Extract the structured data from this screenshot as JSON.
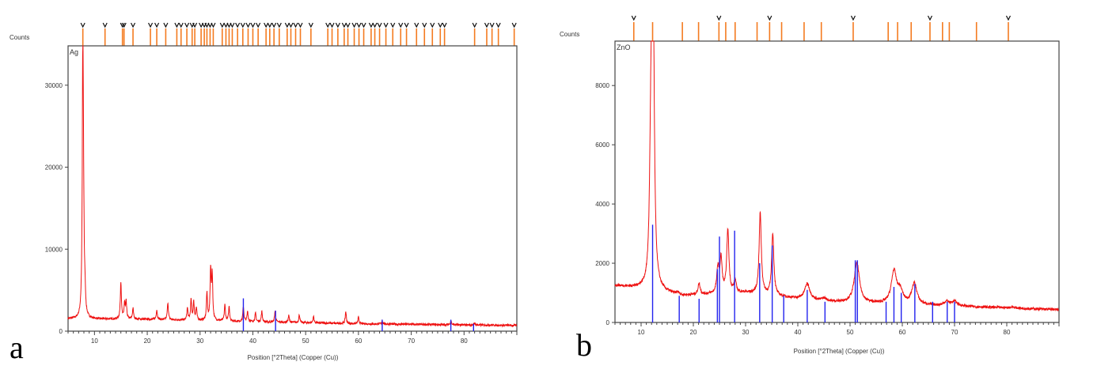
{
  "colors": {
    "pattern": "#ee1111",
    "reference_top": "#f47b20",
    "reference_phase": "#2222ee",
    "axis": "#444444"
  },
  "chart_data": [
    {
      "type": "line",
      "panel_letter": "a",
      "sample_label": "Ag",
      "ylabel": "Counts",
      "xlabel": "Position [°2Theta] (Copper (Cu))",
      "xlim": [
        5,
        90
      ],
      "ylim": [
        0,
        34800
      ],
      "xticks": [
        10,
        20,
        30,
        40,
        50,
        60,
        70,
        80
      ],
      "yticks": [
        0,
        10000,
        20000,
        30000
      ],
      "grid": false,
      "baseline": [
        [
          5,
          1500
        ],
        [
          20,
          1450
        ],
        [
          40,
          1150
        ],
        [
          60,
          900
        ],
        [
          90,
          700
        ]
      ],
      "peaks": [
        [
          7.8,
          34800
        ],
        [
          7.95,
          8500
        ],
        [
          8.2,
          3600
        ],
        [
          15.0,
          6000
        ],
        [
          15.7,
          3300
        ],
        [
          16.0,
          3500
        ],
        [
          17.3,
          2800
        ],
        [
          21.8,
          2600
        ],
        [
          23.9,
          3500
        ],
        [
          27.6,
          2800
        ],
        [
          28.3,
          3800
        ],
        [
          28.8,
          3500
        ],
        [
          29.3,
          2800
        ],
        [
          31.3,
          4600
        ],
        [
          32.0,
          7300
        ],
        [
          32.3,
          6800
        ],
        [
          34.7,
          3200
        ],
        [
          35.5,
          3000
        ],
        [
          38.2,
          3000
        ],
        [
          39.0,
          2400
        ],
        [
          40.5,
          2200
        ],
        [
          41.7,
          2400
        ],
        [
          44.2,
          2400
        ],
        [
          46.8,
          1900
        ],
        [
          48.8,
          2000
        ],
        [
          51.5,
          1800
        ],
        [
          57.6,
          2400
        ],
        [
          60.0,
          1700
        ],
        [
          64.5,
          1300
        ],
        [
          77.5,
          1300
        ],
        [
          82.0,
          1000
        ]
      ],
      "reference_phase_lines": [
        [
          38.2,
          4000
        ],
        [
          44.3,
          2500
        ],
        [
          64.5,
          1400
        ],
        [
          77.5,
          1400
        ],
        [
          81.8,
          900
        ]
      ],
      "reference_top_ticks": [
        7.8,
        12.0,
        15.3,
        15.6,
        17.3,
        20.6,
        21.8,
        23.5,
        25.6,
        26.4,
        27.5,
        28.5,
        29.0,
        30.2,
        30.8,
        31.3,
        31.9,
        32.5,
        34.2,
        34.9,
        35.5,
        36.1,
        37.1,
        38.1,
        39.1,
        40.0,
        41.0,
        42.5,
        43.2,
        44.0,
        45.0,
        46.5,
        47.2,
        48.1,
        49.0,
        51.0,
        54.2,
        55.0,
        56.1,
        57.3,
        58.0,
        59.2,
        60.1,
        61.0,
        62.4,
        63.1,
        64.0,
        65.2,
        66.5,
        68.0,
        69.1,
        71.0,
        72.5,
        74.0,
        75.5,
        76.3,
        82.0,
        84.3,
        85.3,
        86.5,
        89.5
      ]
    },
    {
      "type": "line",
      "panel_letter": "b",
      "sample_label": "ZnO",
      "ylabel": "Counts",
      "xlabel": "Position [°2Theta] (Copper (Cu))",
      "xlim": [
        5,
        90
      ],
      "ylim": [
        0,
        9500
      ],
      "xticks": [
        10,
        20,
        30,
        40,
        50,
        60,
        70,
        80
      ],
      "yticks": [
        0,
        2000,
        4000,
        6000,
        8000
      ],
      "grid": false,
      "baseline": [
        [
          5,
          1250
        ],
        [
          10,
          1150
        ],
        [
          18,
          900
        ],
        [
          30,
          1000
        ],
        [
          45,
          700
        ],
        [
          60,
          600
        ],
        [
          70,
          550
        ],
        [
          90,
          430
        ]
      ],
      "peaks": [
        [
          11.8,
          3800
        ],
        [
          12.1,
          6700
        ],
        [
          12.3,
          9500
        ],
        [
          17.0,
          1000
        ],
        [
          21.1,
          1300
        ],
        [
          24.7,
          1800
        ],
        [
          25.3,
          2100
        ],
        [
          26.6,
          3100
        ],
        [
          28.0,
          1400
        ],
        [
          32.8,
          3700
        ],
        [
          35.2,
          3000
        ],
        [
          41.8,
          1300
        ],
        [
          45.0,
          800
        ],
        [
          51.3,
          2000
        ],
        [
          58.4,
          1700
        ],
        [
          59.6,
          1000
        ],
        [
          62.3,
          1300
        ],
        [
          68.5,
          700
        ],
        [
          70.0,
          700
        ],
        [
          81.0,
          520
        ]
      ],
      "reference_phase_lines": [
        [
          12.2,
          3300
        ],
        [
          17.3,
          900
        ],
        [
          21.1,
          800
        ],
        [
          24.6,
          1800
        ],
        [
          25.0,
          2900
        ],
        [
          27.9,
          3100
        ],
        [
          32.7,
          2000
        ],
        [
          35.1,
          2600
        ],
        [
          37.3,
          900
        ],
        [
          41.8,
          1100
        ],
        [
          45.2,
          700
        ],
        [
          51.0,
          2100
        ],
        [
          51.4,
          2100
        ],
        [
          56.9,
          700
        ],
        [
          58.4,
          1200
        ],
        [
          59.8,
          1000
        ],
        [
          62.4,
          1300
        ],
        [
          65.8,
          700
        ],
        [
          68.6,
          700
        ],
        [
          70.0,
          700
        ]
      ],
      "reference_top_ticks": [
        8.6,
        12.2,
        17.9,
        21.0,
        24.9,
        26.2,
        28.0,
        32.2,
        34.6,
        36.9,
        41.2,
        44.5,
        50.6,
        57.3,
        59.1,
        61.7,
        65.3,
        67.7,
        69.0,
        74.2,
        80.3
      ]
    }
  ]
}
